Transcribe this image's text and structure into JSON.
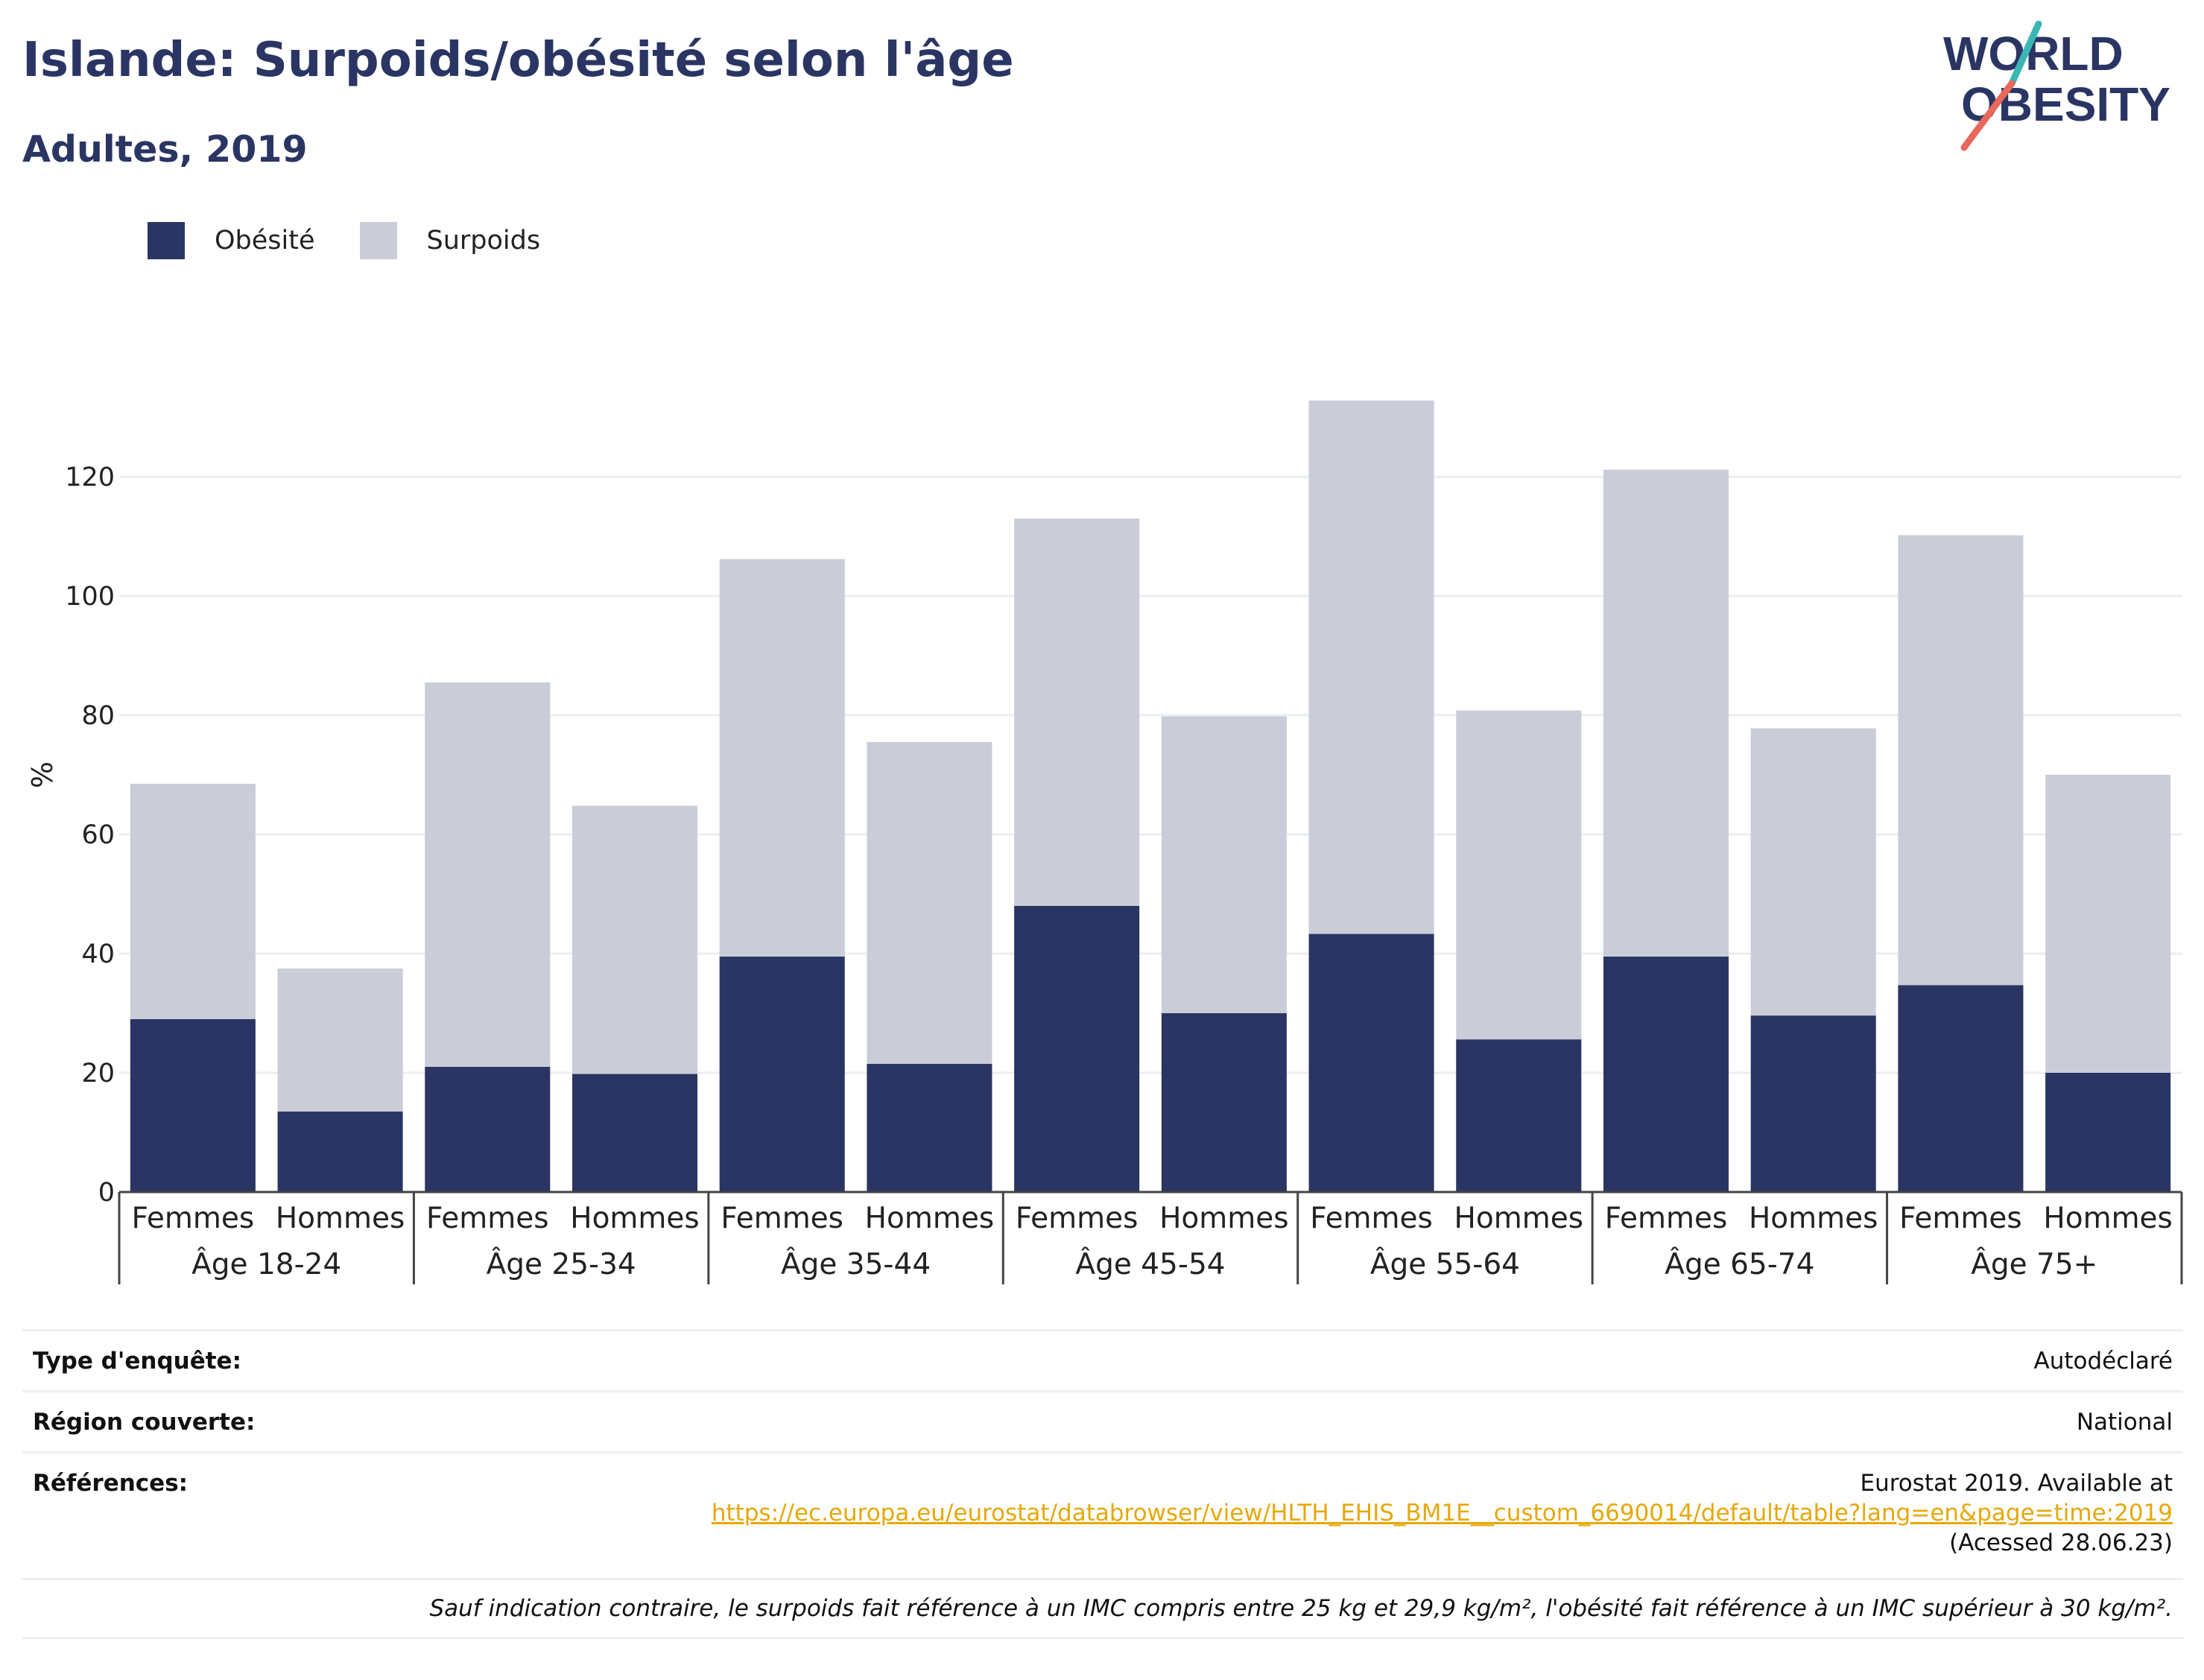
{
  "title": "Islande: Surpoids/obésité selon l'âge",
  "subtitle": "Adultes, 2019",
  "logo": {
    "line1": "WORLD",
    "line2": "OBESITY"
  },
  "colors": {
    "obesity": "#2a3563",
    "overweight": "#cacdd8",
    "title": "#2a3563",
    "link": "#e6a80a",
    "logo_accent_teal": "#3ab7b5",
    "logo_accent_red": "#e8685b"
  },
  "legend": [
    {
      "label": "Obésité",
      "color": "#2a3563"
    },
    {
      "label": "Surpoids",
      "color": "#cacdd8"
    }
  ],
  "chart_data": {
    "type": "bar",
    "stacked": true,
    "ylabel": "%",
    "ylim": [
      0,
      140
    ],
    "yticks": [
      0,
      20,
      40,
      60,
      80,
      100,
      120
    ],
    "grid": true,
    "legend_position": "top-left",
    "groups": [
      "Âge 18-24",
      "Âge 25-34",
      "Âge 35-44",
      "Âge 45-54",
      "Âge 55-64",
      "Âge 65-74",
      "Âge 75+"
    ],
    "subcategories": [
      "Femmes",
      "Hommes"
    ],
    "series": [
      {
        "name": "Obésité",
        "values": [
          29,
          13.5,
          21,
          19.8,
          39.5,
          21.5,
          48,
          30,
          43.3,
          25.6,
          39.5,
          29.6,
          34.7,
          20
        ]
      },
      {
        "name": "Surpoids",
        "values": [
          39.5,
          24,
          64.5,
          45,
          66.7,
          54,
          65,
          49.8,
          89.5,
          55.2,
          81.7,
          48.2,
          75.5,
          50
        ]
      }
    ]
  },
  "table": {
    "survey_type": {
      "label": "Type d'enquête:",
      "value": "Autodéclaré"
    },
    "region": {
      "label": "Région couverte:",
      "value": "National"
    },
    "references": {
      "label": "Références:",
      "line1": "Eurostat 2019. Available at",
      "link": "https://ec.europa.eu/eurostat/databrowser/view/HLTH_EHIS_BM1E__custom_6690014/default/table?lang=en&page=time:2019",
      "line3": "(Acessed 28.06.23)"
    },
    "note": "Sauf indication contraire, le surpoids fait référence à un IMC compris entre 25 kg et 29,9 kg/m², l'obésité fait référence à un IMC supérieur à 30 kg/m²."
  }
}
